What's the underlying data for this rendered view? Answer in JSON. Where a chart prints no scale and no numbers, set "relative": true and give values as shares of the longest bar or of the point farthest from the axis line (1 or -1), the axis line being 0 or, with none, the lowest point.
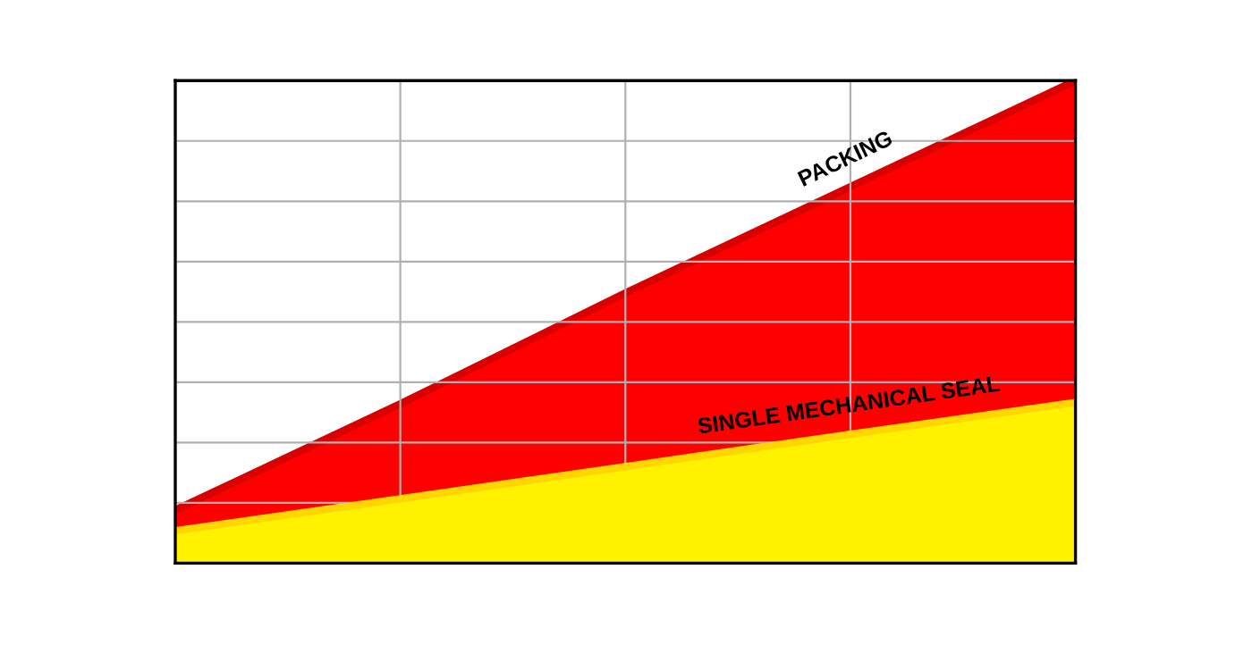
{
  "chart_data": {
    "type": "area",
    "relative": true,
    "categories": [
      null,
      null,
      null,
      null,
      null
    ],
    "series": [
      {
        "name": "PACKING",
        "color": "#ff0000",
        "values": [
          0.11,
          0.33,
          0.56,
          0.78,
          1.0
        ]
      },
      {
        "name": "SINGLE MECHANICAL SEAL",
        "color": "#fff200",
        "values": [
          0.067,
          0.133,
          0.2,
          0.267,
          0.333
        ]
      }
    ],
    "grid": true,
    "legend": false,
    "tick_labels": false
  }
}
